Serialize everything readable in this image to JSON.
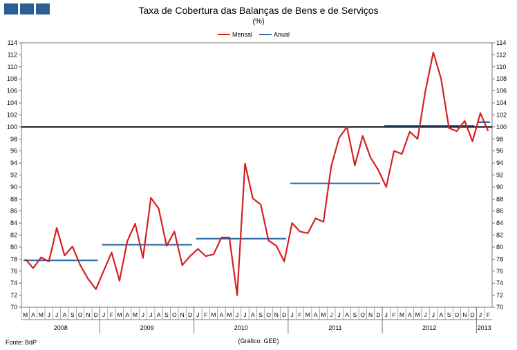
{
  "header": {
    "title": "Taxa de Cobertura das Balanças de Bens e de Serviços",
    "subtitle": "(%)"
  },
  "footer": {
    "source": "Fonte: BdP",
    "credit": "(Gráfico: GEE)"
  },
  "colors": {
    "mensal": "#d42020",
    "anual": "#2f6ea8",
    "reference": "#000000",
    "logo": "#2c5d95"
  },
  "chart_data": {
    "type": "line",
    "title": "Taxa de Cobertura das Balanças de Bens e de Serviços",
    "ylabel": "(%)",
    "ylim": [
      70,
      114
    ],
    "yticks": [
      70,
      72,
      74,
      76,
      78,
      80,
      82,
      84,
      86,
      88,
      90,
      92,
      94,
      96,
      98,
      100,
      102,
      104,
      106,
      108,
      110,
      112,
      114
    ],
    "legend": [
      "Mensal",
      "Anual"
    ],
    "legend_position": "top",
    "reference_line": 100,
    "months": [
      "M",
      "A",
      "M",
      "J",
      "J",
      "A",
      "S",
      "O",
      "N",
      "D",
      "J",
      "F",
      "M",
      "A",
      "M",
      "J",
      "J",
      "A",
      "S",
      "O",
      "N",
      "D",
      "J",
      "F",
      "M",
      "A",
      "M",
      "J",
      "J",
      "A",
      "S",
      "O",
      "N",
      "D",
      "J",
      "F",
      "M",
      "A",
      "M",
      "J",
      "J",
      "A",
      "S",
      "O",
      "N",
      "D",
      "J",
      "F",
      "M",
      "A",
      "M",
      "J",
      "J",
      "A",
      "S",
      "O",
      "N",
      "D",
      "J",
      "F"
    ],
    "years": [
      {
        "label": "2008",
        "months": 10
      },
      {
        "label": "2009",
        "months": 12
      },
      {
        "label": "2010",
        "months": 12
      },
      {
        "label": "2011",
        "months": 12
      },
      {
        "label": "2012",
        "months": 12
      },
      {
        "label": "2013",
        "months": 2
      }
    ],
    "series": [
      {
        "name": "Mensal",
        "values": [
          78.0,
          76.5,
          78.3,
          77.6,
          83.2,
          78.6,
          80.1,
          77.0,
          74.7,
          73.0,
          76.1,
          79.1,
          74.4,
          81.0,
          83.9,
          78.2,
          88.2,
          86.4,
          80.2,
          82.6,
          77.0,
          78.5,
          79.7,
          78.5,
          78.8,
          81.6,
          81.6,
          72.0,
          93.9,
          88.1,
          87.1,
          81.1,
          80.2,
          77.6,
          84.0,
          82.6,
          82.3,
          84.8,
          84.2,
          93.5,
          98.2,
          100.0,
          93.6,
          98.5,
          94.9,
          92.8,
          90.0,
          96.0,
          95.5,
          99.2,
          98.0,
          106.0,
          112.4,
          108.0,
          99.8,
          99.3,
          101.0,
          97.6,
          102.3,
          99.3
        ]
      },
      {
        "name": "Anual",
        "segments": [
          {
            "year": "2008",
            "value": 77.8
          },
          {
            "year": "2009",
            "value": 80.4
          },
          {
            "year": "2010",
            "value": 81.4
          },
          {
            "year": "2011",
            "value": 90.6
          },
          {
            "year": "2012",
            "value": 100.2
          },
          {
            "year": "2013",
            "value": 100.8
          }
        ]
      }
    ]
  }
}
